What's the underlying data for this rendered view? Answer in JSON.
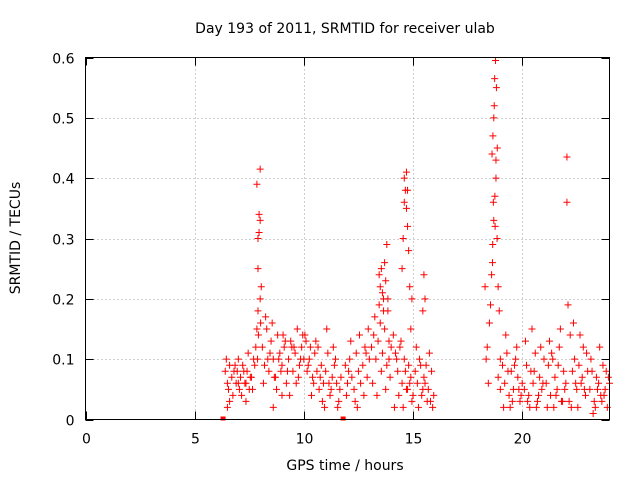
{
  "chart_data": {
    "type": "scatter",
    "title": "Day 193 of 2011, SRMTID for receiver ulab",
    "xlabel": "GPS time / hours",
    "ylabel": "SRMTID / TECUs",
    "xlim": [
      0,
      24
    ],
    "ylim": [
      0,
      0.6
    ],
    "xticks": [
      0,
      5,
      10,
      15,
      20
    ],
    "xtick_labels": [
      "0",
      "5",
      "10",
      "15",
      "20"
    ],
    "yticks": [
      0,
      0.1,
      0.2,
      0.3,
      0.4,
      0.5,
      0.6
    ],
    "ytick_labels": [
      "0",
      "0.1",
      "0.2",
      "0.3",
      "0.4",
      "0.5",
      "0.6"
    ],
    "grid": true,
    "marker": "+",
    "color": "#ff0000",
    "series": [
      {
        "name": "SRMTID",
        "x": [
          6.3,
          11.8,
          6.4,
          6.5,
          6.55,
          6.6,
          6.7,
          6.75,
          6.8,
          6.9,
          7.0,
          7.05,
          7.1,
          7.2,
          7.3,
          7.35,
          7.4,
          7.5,
          7.6,
          7.7,
          6.45,
          6.6,
          6.85,
          7.0,
          7.15,
          7.25,
          7.45,
          7.55,
          7.65,
          7.75,
          6.5,
          6.95,
          7.35,
          7.8,
          7.85,
          7.9,
          7.9,
          7.95,
          8.0,
          8.0,
          7.85,
          7.9,
          7.95,
          8.0,
          8.05,
          7.88,
          7.92,
          8.02,
          8.1,
          8.2,
          8.3,
          8.4,
          8.5,
          8.6,
          8.7,
          8.8,
          8.9,
          9.0,
          9.1,
          9.2,
          9.3,
          9.4,
          9.5,
          9.6,
          9.7,
          9.8,
          9.9,
          8.15,
          8.35,
          8.55,
          8.75,
          8.95,
          9.15,
          9.35,
          9.55,
          9.75,
          9.95,
          8.25,
          8.45,
          8.65,
          8.85,
          9.05,
          9.25,
          9.45,
          9.65,
          9.85,
          8.6,
          9.0,
          10.0,
          10.1,
          10.2,
          10.3,
          10.4,
          10.5,
          10.6,
          10.7,
          10.8,
          10.9,
          11.0,
          11.1,
          11.2,
          11.3,
          11.4,
          11.5,
          11.6,
          11.7,
          10.05,
          10.25,
          10.45,
          10.65,
          10.85,
          11.05,
          11.25,
          11.45,
          11.65,
          10.15,
          10.35,
          10.55,
          10.75,
          10.95,
          11.15,
          11.35,
          11.55,
          11.9,
          12.0,
          12.1,
          12.2,
          12.3,
          12.4,
          12.5,
          12.6,
          12.7,
          12.8,
          12.9,
          13.0,
          11.95,
          12.15,
          12.35,
          12.55,
          12.75,
          12.95,
          12.05,
          12.45,
          12.85,
          13.1,
          13.2,
          13.3,
          13.4,
          13.5,
          13.6,
          13.7,
          13.8,
          13.9,
          14.0,
          13.15,
          13.35,
          13.55,
          13.75,
          13.95,
          13.25,
          13.45,
          13.65,
          13.85,
          13.45,
          13.5,
          13.55,
          13.6,
          13.65,
          13.7,
          13.75,
          13.8,
          13.85,
          13.9,
          14.1,
          14.2,
          14.3,
          14.4,
          14.5,
          14.6,
          14.7,
          14.8,
          14.9,
          15.0,
          14.5,
          14.55,
          14.6,
          14.6,
          14.65,
          14.7,
          14.7,
          14.75,
          14.8,
          14.85,
          14.9,
          14.95,
          14.75,
          14.15,
          14.35,
          14.55,
          14.75,
          14.95,
          14.25,
          14.45,
          14.65,
          14.85,
          15.1,
          15.2,
          15.3,
          15.4,
          15.5,
          15.6,
          15.7,
          15.8,
          15.9,
          15.15,
          15.35,
          15.55,
          15.75,
          15.95,
          15.25,
          15.45,
          15.65,
          15.85,
          15.5,
          15.55,
          15.45,
          18.3,
          18.4,
          18.5,
          18.55,
          18.6,
          18.65,
          18.7,
          18.75,
          18.8,
          18.85,
          18.9,
          18.95,
          19.0,
          18.62,
          18.66,
          18.7,
          18.72,
          18.74,
          18.78,
          18.82,
          18.86,
          18.68,
          18.64,
          18.8,
          18.76,
          18.35,
          18.45,
          18.9,
          19.0,
          19.1,
          19.2,
          19.3,
          19.4,
          19.5,
          19.6,
          19.7,
          19.8,
          19.9,
          20.0,
          19.15,
          19.35,
          19.55,
          19.75,
          19.95,
          19.25,
          19.45,
          19.65,
          19.85,
          20.1,
          20.2,
          20.3,
          20.4,
          20.5,
          20.6,
          20.7,
          20.8,
          20.9,
          21.0,
          20.15,
          20.35,
          20.55,
          20.75,
          20.95,
          20.25,
          20.45,
          20.65,
          20.85,
          21.1,
          21.2,
          21.3,
          21.4,
          21.5,
          21.6,
          21.7,
          21.8,
          21.9,
          22.0,
          21.15,
          21.35,
          21.55,
          21.75,
          21.95,
          21.25,
          21.45,
          21.65,
          21.85,
          22.05,
          22.05,
          22.1,
          22.2,
          22.3,
          22.4,
          22.5,
          22.6,
          22.7,
          22.8,
          22.9,
          23.0,
          22.15,
          22.35,
          22.55,
          22.75,
          22.95,
          22.25,
          22.45,
          22.65,
          22.85,
          23.1,
          23.2,
          23.3,
          23.4,
          23.5,
          23.6,
          23.7,
          23.8,
          23.9,
          24.0,
          23.15,
          23.35,
          23.55,
          23.75,
          23.95,
          23.25,
          23.45,
          23.65,
          23.85
        ],
        "y": [
          0.0,
          0.0,
          0.08,
          0.06,
          0.05,
          0.09,
          0.07,
          0.04,
          0.08,
          0.06,
          0.1,
          0.05,
          0.07,
          0.09,
          0.06,
          0.03,
          0.08,
          0.05,
          0.07,
          0.1,
          0.1,
          0.03,
          0.09,
          0.06,
          0.04,
          0.08,
          0.11,
          0.07,
          0.05,
          0.09,
          0.02,
          0.08,
          0.06,
          0.12,
          0.15,
          0.18,
          0.25,
          0.31,
          0.33,
          0.415,
          0.39,
          0.3,
          0.34,
          0.2,
          0.22,
          0.1,
          0.14,
          0.16,
          0.12,
          0.09,
          0.15,
          0.08,
          0.13,
          0.1,
          0.07,
          0.14,
          0.11,
          0.09,
          0.12,
          0.06,
          0.1,
          0.13,
          0.08,
          0.11,
          0.15,
          0.09,
          0.12,
          0.06,
          0.1,
          0.16,
          0.05,
          0.08,
          0.13,
          0.04,
          0.12,
          0.07,
          0.14,
          0.17,
          0.11,
          0.07,
          0.1,
          0.14,
          0.08,
          0.12,
          0.06,
          0.1,
          0.02,
          0.04,
          0.1,
          0.13,
          0.09,
          0.12,
          0.07,
          0.11,
          0.08,
          0.05,
          0.09,
          0.06,
          0.08,
          0.11,
          0.04,
          0.07,
          0.09,
          0.06,
          0.03,
          0.07,
          0.14,
          0.1,
          0.06,
          0.12,
          0.03,
          0.15,
          0.05,
          0.1,
          0.05,
          0.08,
          0.04,
          0.13,
          0.07,
          0.02,
          0.06,
          0.12,
          0.02,
          0.09,
          0.06,
          0.1,
          0.07,
          0.05,
          0.11,
          0.08,
          0.06,
          0.09,
          0.12,
          0.07,
          0.1,
          0.04,
          0.13,
          0.03,
          0.14,
          0.04,
          0.15,
          0.08,
          0.02,
          0.11,
          0.12,
          0.14,
          0.1,
          0.13,
          0.16,
          0.11,
          0.15,
          0.09,
          0.13,
          0.12,
          0.06,
          0.04,
          0.08,
          0.05,
          0.07,
          0.17,
          0.19,
          0.2,
          0.18,
          0.24,
          0.22,
          0.25,
          0.21,
          0.18,
          0.26,
          0.23,
          0.29,
          0.2,
          0.1,
          0.14,
          0.11,
          0.08,
          0.12,
          0.06,
          0.1,
          0.05,
          0.09,
          0.07,
          0.04,
          0.25,
          0.3,
          0.36,
          0.4,
          0.38,
          0.41,
          0.35,
          0.32,
          0.28,
          0.22,
          0.15,
          0.2,
          0.38,
          0.02,
          0.04,
          0.02,
          0.05,
          0.03,
          0.1,
          0.13,
          0.08,
          0.06,
          0.08,
          0.06,
          0.1,
          0.04,
          0.07,
          0.09,
          0.05,
          0.03,
          0.02,
          0.12,
          0.09,
          0.06,
          0.11,
          0.04,
          0.02,
          0.05,
          0.03,
          0.08,
          0.24,
          0.2,
          0.18,
          0.22,
          0.12,
          0.16,
          0.19,
          0.24,
          0.29,
          0.33,
          0.37,
          0.4,
          0.3,
          0.22,
          0.18,
          0.1,
          0.44,
          0.47,
          0.5,
          0.52,
          0.565,
          0.595,
          0.55,
          0.45,
          0.36,
          0.26,
          0.43,
          0.32,
          0.1,
          0.06,
          0.07,
          0.05,
          0.09,
          0.06,
          0.11,
          0.04,
          0.08,
          0.05,
          0.1,
          0.07,
          0.03,
          0.06,
          0.02,
          0.08,
          0.03,
          0.12,
          0.04,
          0.14,
          0.02,
          0.09,
          0.05,
          0.05,
          0.09,
          0.04,
          0.08,
          0.06,
          0.11,
          0.03,
          0.07,
          0.05,
          0.1,
          0.13,
          0.02,
          0.08,
          0.04,
          0.06,
          0.03,
          0.15,
          0.02,
          0.12,
          0.06,
          0.09,
          0.04,
          0.1,
          0.07,
          0.05,
          0.12,
          0.03,
          0.08,
          0.06,
          0.02,
          0.11,
          0.04,
          0.15,
          0.05,
          0.13,
          0.02,
          0.09,
          0.03,
          0.435,
          0.36,
          0.19,
          0.14,
          0.08,
          0.1,
          0.05,
          0.09,
          0.06,
          0.12,
          0.04,
          0.08,
          0.03,
          0.16,
          0.02,
          0.07,
          0.11,
          0.02,
          0.06,
          0.14,
          0.05,
          0.05,
          0.08,
          0.03,
          0.07,
          0.06,
          0.04,
          0.09,
          0.05,
          0.02,
          0.06,
          0.1,
          0.02,
          0.12,
          0.04,
          0.07,
          0.01,
          0.05,
          0.03,
          0.08
        ]
      }
    ]
  }
}
